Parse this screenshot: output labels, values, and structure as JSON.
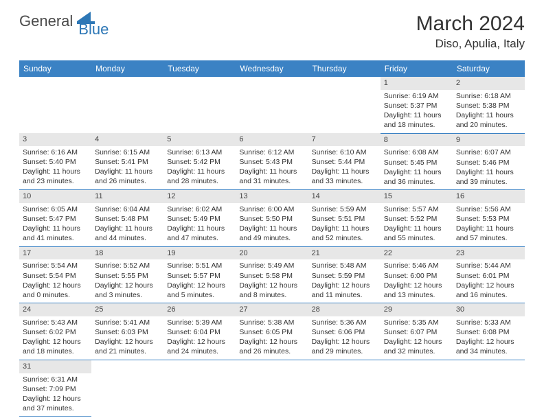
{
  "logo": {
    "text1": "General",
    "text2": "Blue"
  },
  "title": "March 2024",
  "location": "Diso, Apulia, Italy",
  "colors": {
    "header_bg": "#3b82c4",
    "header_fg": "#ffffff",
    "daynum_bg": "#e7e7e7",
    "border": "#3b82c4",
    "logo_gray": "#4a4a4a",
    "logo_blue": "#2d77b6"
  },
  "weekdays": [
    "Sunday",
    "Monday",
    "Tuesday",
    "Wednesday",
    "Thursday",
    "Friday",
    "Saturday"
  ],
  "weeks": [
    [
      null,
      null,
      null,
      null,
      null,
      {
        "n": "1",
        "sunrise": "6:19 AM",
        "sunset": "5:37 PM",
        "daylight": "11 hours and 18 minutes."
      },
      {
        "n": "2",
        "sunrise": "6:18 AM",
        "sunset": "5:38 PM",
        "daylight": "11 hours and 20 minutes."
      }
    ],
    [
      {
        "n": "3",
        "sunrise": "6:16 AM",
        "sunset": "5:40 PM",
        "daylight": "11 hours and 23 minutes."
      },
      {
        "n": "4",
        "sunrise": "6:15 AM",
        "sunset": "5:41 PM",
        "daylight": "11 hours and 26 minutes."
      },
      {
        "n": "5",
        "sunrise": "6:13 AM",
        "sunset": "5:42 PM",
        "daylight": "11 hours and 28 minutes."
      },
      {
        "n": "6",
        "sunrise": "6:12 AM",
        "sunset": "5:43 PM",
        "daylight": "11 hours and 31 minutes."
      },
      {
        "n": "7",
        "sunrise": "6:10 AM",
        "sunset": "5:44 PM",
        "daylight": "11 hours and 33 minutes."
      },
      {
        "n": "8",
        "sunrise": "6:08 AM",
        "sunset": "5:45 PM",
        "daylight": "11 hours and 36 minutes."
      },
      {
        "n": "9",
        "sunrise": "6:07 AM",
        "sunset": "5:46 PM",
        "daylight": "11 hours and 39 minutes."
      }
    ],
    [
      {
        "n": "10",
        "sunrise": "6:05 AM",
        "sunset": "5:47 PM",
        "daylight": "11 hours and 41 minutes."
      },
      {
        "n": "11",
        "sunrise": "6:04 AM",
        "sunset": "5:48 PM",
        "daylight": "11 hours and 44 minutes."
      },
      {
        "n": "12",
        "sunrise": "6:02 AM",
        "sunset": "5:49 PM",
        "daylight": "11 hours and 47 minutes."
      },
      {
        "n": "13",
        "sunrise": "6:00 AM",
        "sunset": "5:50 PM",
        "daylight": "11 hours and 49 minutes."
      },
      {
        "n": "14",
        "sunrise": "5:59 AM",
        "sunset": "5:51 PM",
        "daylight": "11 hours and 52 minutes."
      },
      {
        "n": "15",
        "sunrise": "5:57 AM",
        "sunset": "5:52 PM",
        "daylight": "11 hours and 55 minutes."
      },
      {
        "n": "16",
        "sunrise": "5:56 AM",
        "sunset": "5:53 PM",
        "daylight": "11 hours and 57 minutes."
      }
    ],
    [
      {
        "n": "17",
        "sunrise": "5:54 AM",
        "sunset": "5:54 PM",
        "daylight": "12 hours and 0 minutes."
      },
      {
        "n": "18",
        "sunrise": "5:52 AM",
        "sunset": "5:55 PM",
        "daylight": "12 hours and 3 minutes."
      },
      {
        "n": "19",
        "sunrise": "5:51 AM",
        "sunset": "5:57 PM",
        "daylight": "12 hours and 5 minutes."
      },
      {
        "n": "20",
        "sunrise": "5:49 AM",
        "sunset": "5:58 PM",
        "daylight": "12 hours and 8 minutes."
      },
      {
        "n": "21",
        "sunrise": "5:48 AM",
        "sunset": "5:59 PM",
        "daylight": "12 hours and 11 minutes."
      },
      {
        "n": "22",
        "sunrise": "5:46 AM",
        "sunset": "6:00 PM",
        "daylight": "12 hours and 13 minutes."
      },
      {
        "n": "23",
        "sunrise": "5:44 AM",
        "sunset": "6:01 PM",
        "daylight": "12 hours and 16 minutes."
      }
    ],
    [
      {
        "n": "24",
        "sunrise": "5:43 AM",
        "sunset": "6:02 PM",
        "daylight": "12 hours and 18 minutes."
      },
      {
        "n": "25",
        "sunrise": "5:41 AM",
        "sunset": "6:03 PM",
        "daylight": "12 hours and 21 minutes."
      },
      {
        "n": "26",
        "sunrise": "5:39 AM",
        "sunset": "6:04 PM",
        "daylight": "12 hours and 24 minutes."
      },
      {
        "n": "27",
        "sunrise": "5:38 AM",
        "sunset": "6:05 PM",
        "daylight": "12 hours and 26 minutes."
      },
      {
        "n": "28",
        "sunrise": "5:36 AM",
        "sunset": "6:06 PM",
        "daylight": "12 hours and 29 minutes."
      },
      {
        "n": "29",
        "sunrise": "5:35 AM",
        "sunset": "6:07 PM",
        "daylight": "12 hours and 32 minutes."
      },
      {
        "n": "30",
        "sunrise": "5:33 AM",
        "sunset": "6:08 PM",
        "daylight": "12 hours and 34 minutes."
      }
    ],
    [
      {
        "n": "31",
        "sunrise": "6:31 AM",
        "sunset": "7:09 PM",
        "daylight": "12 hours and 37 minutes."
      },
      null,
      null,
      null,
      null,
      null,
      null
    ]
  ],
  "labels": {
    "sunrise": "Sunrise: ",
    "sunset": "Sunset: ",
    "daylight": "Daylight: "
  }
}
